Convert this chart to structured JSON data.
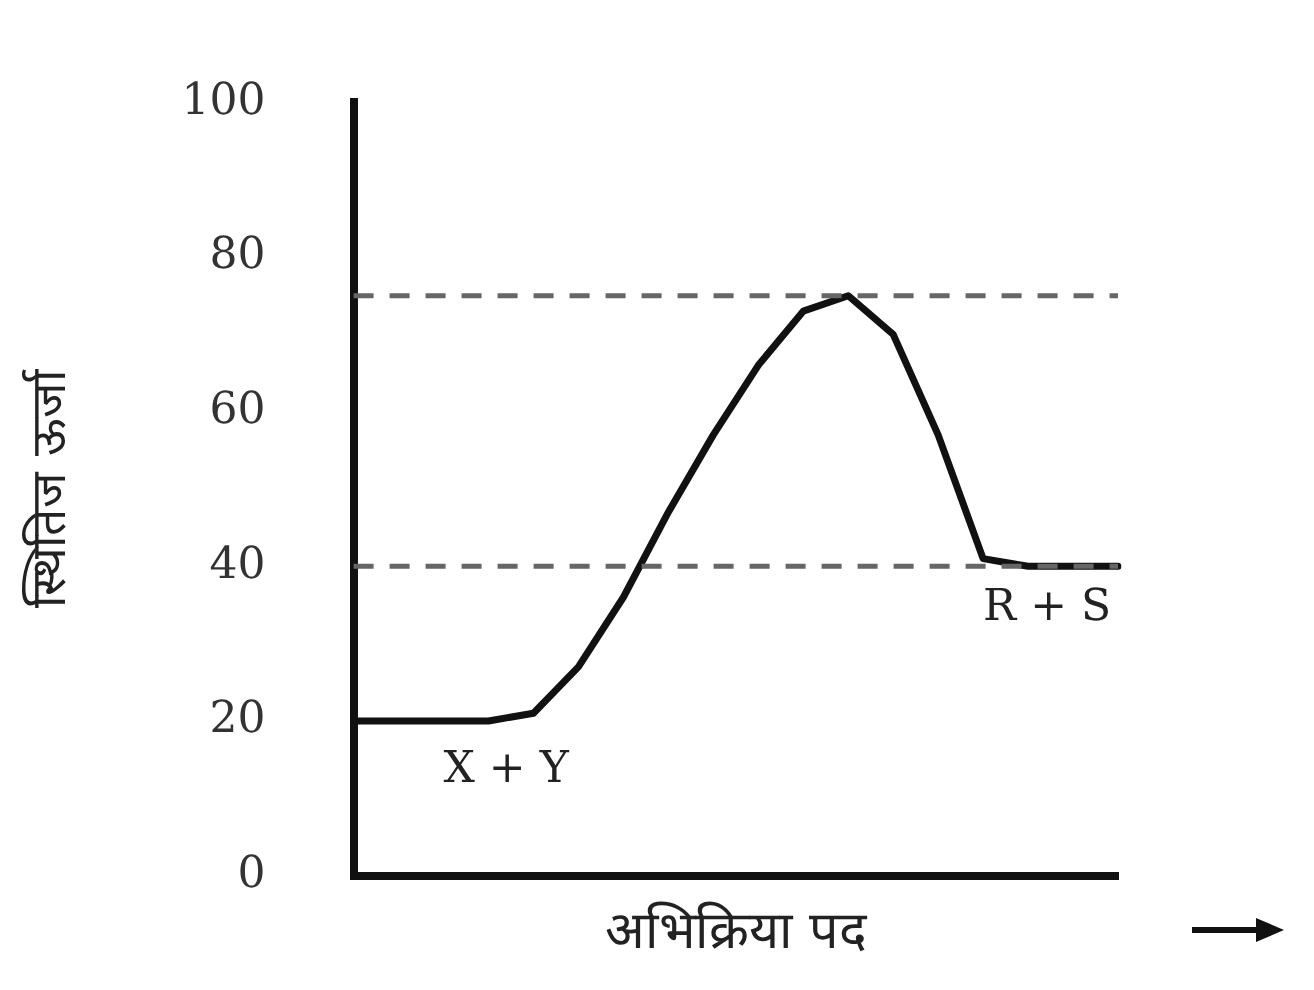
{
  "chart_data": {
    "type": "line",
    "xlabel": "अभिक्रिया पद",
    "ylabel": "स्थितिज ऊर्जा",
    "categories": [
      null,
      null,
      null,
      null,
      null,
      null,
      null,
      null,
      null,
      null,
      null,
      null,
      null,
      null,
      null,
      null,
      null,
      null
    ],
    "series": [
      {
        "color": "#111111",
        "values": [
          20,
          20,
          20,
          20,
          21,
          27,
          36,
          47,
          57,
          66,
          73,
          75,
          70,
          57,
          41,
          40,
          40,
          40
        ]
      }
    ],
    "ylim": [
      0,
      100
    ],
    "yticks": [
      0,
      20,
      40,
      60,
      80,
      100
    ],
    "tick_labels": "y",
    "grid": false,
    "legend": false,
    "marker": "none",
    "line_style": "solid",
    "ref_lines": [
      {
        "axis": "y",
        "value": 75,
        "color": "#666666",
        "line_style": "dashed"
      },
      {
        "axis": "y",
        "value": 40,
        "color": "#666666",
        "line_style": "dashed"
      }
    ],
    "annotations": [
      "X + Y",
      "R + S"
    ]
  }
}
